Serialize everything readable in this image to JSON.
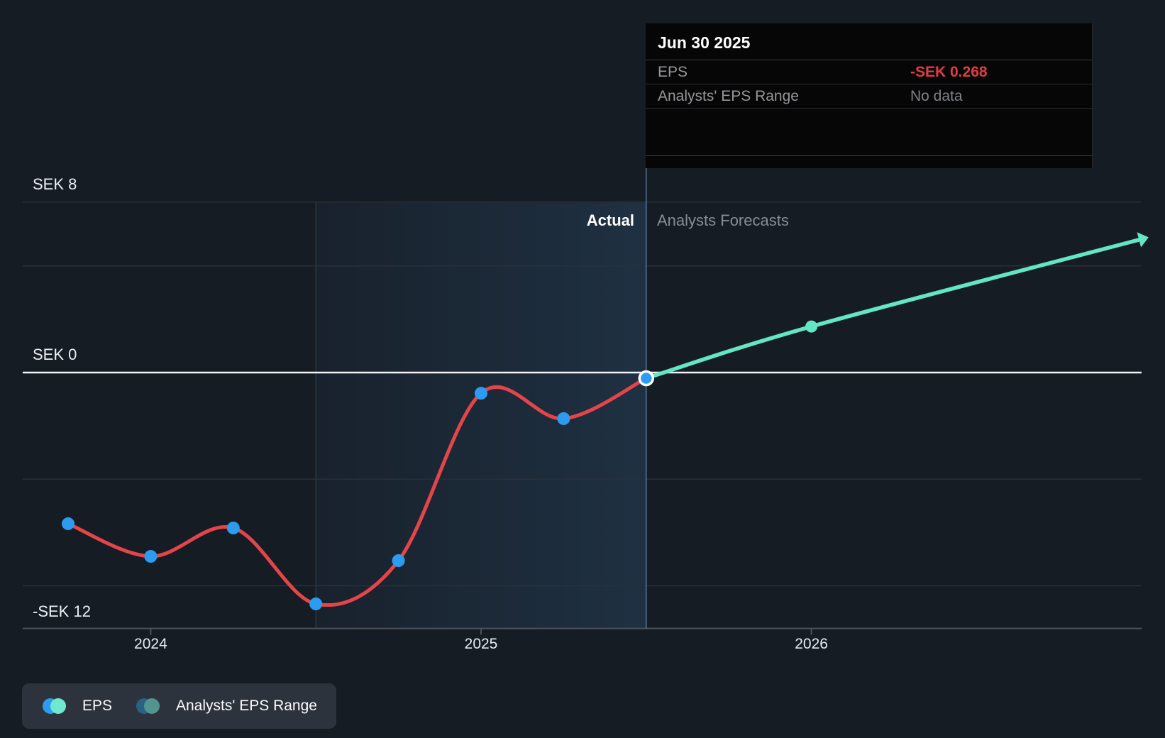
{
  "tooltip": {
    "date": "Jun 30 2025",
    "rows": [
      {
        "label": "EPS",
        "value": "-SEK 0.268"
      },
      {
        "label": "Analysts' EPS Range",
        "value": "No data"
      }
    ]
  },
  "phase_labels": {
    "actual": "Actual",
    "forecast": "Analysts Forecasts"
  },
  "y_axis": {
    "labels": [
      "SEK 8",
      "SEK 0",
      "-SEK 12"
    ]
  },
  "x_axis": {
    "labels": [
      "2024",
      "2025",
      "2026"
    ]
  },
  "legend": {
    "items": [
      {
        "label": "EPS",
        "dot_colors": [
          "#2d9cf0",
          "#6fe9cd"
        ]
      },
      {
        "label": "Analysts' EPS Range",
        "dot_colors": [
          "#2b6183",
          "#53948e"
        ]
      }
    ]
  },
  "colors": {
    "actual_line": "#e54549",
    "forecast_line": "#63e6c6",
    "marker_blue": "#2d9cf0",
    "negative_value": "#e43b40",
    "zero_line": "#f2f4f6",
    "gridline": "#2a3038",
    "axis_baseline": "#4a525c",
    "divider": "rgba(120,170,225,0.45)",
    "highlight_edge": "rgba(130,180,230,0.16)"
  },
  "chart_data": {
    "type": "line",
    "title": "EPS actual vs Analysts Forecasts (SEK per share)",
    "ylabel": "SEK",
    "ylim": [
      -12,
      9.6
    ],
    "gridlines_sek": [
      8,
      5,
      0,
      -5,
      -10
    ],
    "baseline_sek": -12,
    "y_tick_labels": [
      {
        "sek": 8,
        "label": "SEK 8"
      },
      {
        "sek": 0,
        "label": "SEK 0"
      },
      {
        "sek": -12,
        "label": "-SEK 12"
      }
    ],
    "x_ticks": [
      {
        "label": "2024",
        "q": 1
      },
      {
        "label": "2025",
        "q": 5
      },
      {
        "label": "2026",
        "q": 9
      }
    ],
    "highlight_band": {
      "from": "Jun 30 2024",
      "to": "Jun 30 2025",
      "from_q": 3,
      "to_q": 7
    },
    "divider_q": 7,
    "selected_point": {
      "date": "Jun 30 2025",
      "value": -0.268
    },
    "series": [
      {
        "name": "EPS",
        "kind": "actual",
        "points": [
          {
            "date": "Sep 30 2023",
            "q": 0,
            "value": -7.09
          },
          {
            "date": "Dec 31 2023",
            "q": 1,
            "value": -8.62
          },
          {
            "date": "Mar 31 2024",
            "q": 2,
            "value": -7.29
          },
          {
            "date": "Jun 30 2024",
            "q": 3,
            "value": -10.85
          },
          {
            "date": "Sep 30 2024",
            "q": 4,
            "value": -8.82
          },
          {
            "date": "Dec 31 2024",
            "q": 5,
            "value": -0.97
          },
          {
            "date": "Mar 31 2025",
            "q": 6,
            "value": -2.16
          },
          {
            "date": "Jun 30 2025",
            "q": 7,
            "value": -0.268
          }
        ]
      },
      {
        "name": "EPS analysts forecast",
        "kind": "forecast",
        "points": [
          {
            "date": "Jun 30 2025",
            "q": 7,
            "value": -0.268
          },
          {
            "date": "Dec 31 2025",
            "q": 9,
            "value": 2.16
          },
          {
            "date": "Dec 31 2026",
            "q": 13,
            "value": 6.26,
            "endpoint": true
          }
        ]
      }
    ],
    "legend_position": "bottom-left"
  }
}
